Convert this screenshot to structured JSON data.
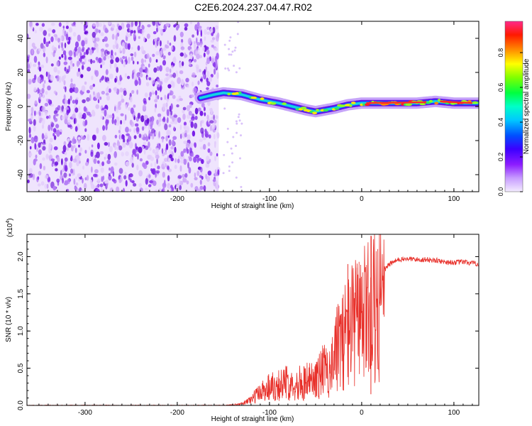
{
  "title": "C2E6.2024.237.04.47.R02",
  "chart_data": [
    {
      "type": "heatmap",
      "xlabel": "Height of straight line (km)",
      "ylabel": "Frequency (Hz)",
      "xlim": [
        -363,
        127
      ],
      "ylim": [
        -50,
        50
      ],
      "xticks": [
        -300,
        -200,
        -100,
        0,
        100
      ],
      "yticks": [
        -40,
        -20,
        0,
        20,
        40
      ],
      "noise_region_x": [
        -363,
        -155
      ],
      "signal_track": {
        "x": [
          -175,
          -160,
          -150,
          -130,
          -110,
          -90,
          -75,
          -60,
          -50,
          -40,
          -30,
          -15,
          0,
          30,
          60,
          80,
          100,
          127
        ],
        "freq": [
          5,
          7,
          8,
          7,
          4,
          2,
          0,
          -2,
          -3,
          -2,
          -1,
          1,
          2,
          2,
          2,
          3,
          2,
          2
        ]
      },
      "colorbar": {
        "label": "Normalized spectral amplitude",
        "ticks": [
          0.0,
          0.2,
          0.4,
          0.6,
          0.8
        ],
        "tick_labels": [
          "0.0",
          "0.2",
          "0.4",
          "0.6",
          "0.8"
        ],
        "colormap": [
          "#f3e8ff",
          "#c08cff",
          "#8000ff",
          "#0000ff",
          "#00b0ff",
          "#00ffff",
          "#00ff80",
          "#40ff00",
          "#ffff00",
          "#ff8000",
          "#ff0000",
          "#ff2080"
        ]
      }
    },
    {
      "type": "line",
      "xlabel": "Height of straight line (km)",
      "ylabel": "SNR (10 * v/v)",
      "ylabel_multiplier": "(x10",
      "ylabel_exponent": "4",
      "ylabel_close": ")",
      "xlim": [
        -363,
        127
      ],
      "ylim": [
        0,
        2.3
      ],
      "xticks": [
        -300,
        -200,
        -100,
        0,
        100
      ],
      "xtick_labels": [
        "-300",
        "-200",
        "-100",
        "0",
        "100"
      ],
      "yticks": [
        0.0,
        0.5,
        1.0,
        1.5,
        2.0
      ],
      "ytick_labels": [
        "0.0",
        "0.5",
        "1.0",
        "1.5",
        "2.0"
      ],
      "color": "#e8302a",
      "series": [
        {
          "name": "SNR",
          "x": [
            -363,
            -250,
            -150,
            -130,
            -120,
            -110,
            -100,
            -90,
            -80,
            -70,
            -60,
            -50,
            -40,
            -30,
            -25,
            -20,
            -15,
            -10,
            -5,
            0,
            5,
            10,
            15,
            20,
            25,
            30,
            40,
            50,
            60,
            70,
            80,
            90,
            100,
            110,
            120,
            127
          ],
          "y": [
            0.0,
            0.0,
            0.0,
            0.02,
            0.08,
            0.18,
            0.26,
            0.28,
            0.3,
            0.3,
            0.32,
            0.35,
            0.5,
            0.8,
            1.0,
            1.15,
            1.25,
            1.35,
            1.4,
            1.45,
            1.55,
            1.6,
            1.7,
            1.75,
            1.82,
            1.9,
            1.96,
            1.97,
            1.96,
            1.96,
            1.95,
            1.93,
            1.92,
            1.93,
            1.91,
            1.9
          ]
        }
      ],
      "spikes": [
        {
          "x": 10,
          "y": 2.28
        },
        {
          "x": 10,
          "y": 0.15
        },
        {
          "x": -15,
          "y": 1.9
        },
        {
          "x": -5,
          "y": 1.85
        }
      ]
    }
  ],
  "axis_labels": {
    "top_x": "Height of straight line (km)",
    "top_y": "Frequency (Hz)",
    "bottom_x": "Height of straight line (km)",
    "bottom_y": "SNR (10 * v/v)"
  },
  "ticks": {
    "top_x": [
      "-300",
      "-200",
      "-100",
      "0",
      "100"
    ],
    "top_y": [
      "40",
      "20",
      "0",
      "-20",
      "-40"
    ],
    "bottom_x": [
      "-300",
      "-200",
      "-100",
      "0",
      "100"
    ],
    "bottom_y": [
      "2.0",
      "1.5",
      "1.0",
      "0.5",
      "0.0"
    ],
    "colorbar": [
      "0.8",
      "0.6",
      "0.4",
      "0.2",
      "0.0"
    ]
  },
  "colors": {
    "snr_line": "#e8302a",
    "noise_dot": "#8a2be2",
    "axes": "#000000"
  }
}
